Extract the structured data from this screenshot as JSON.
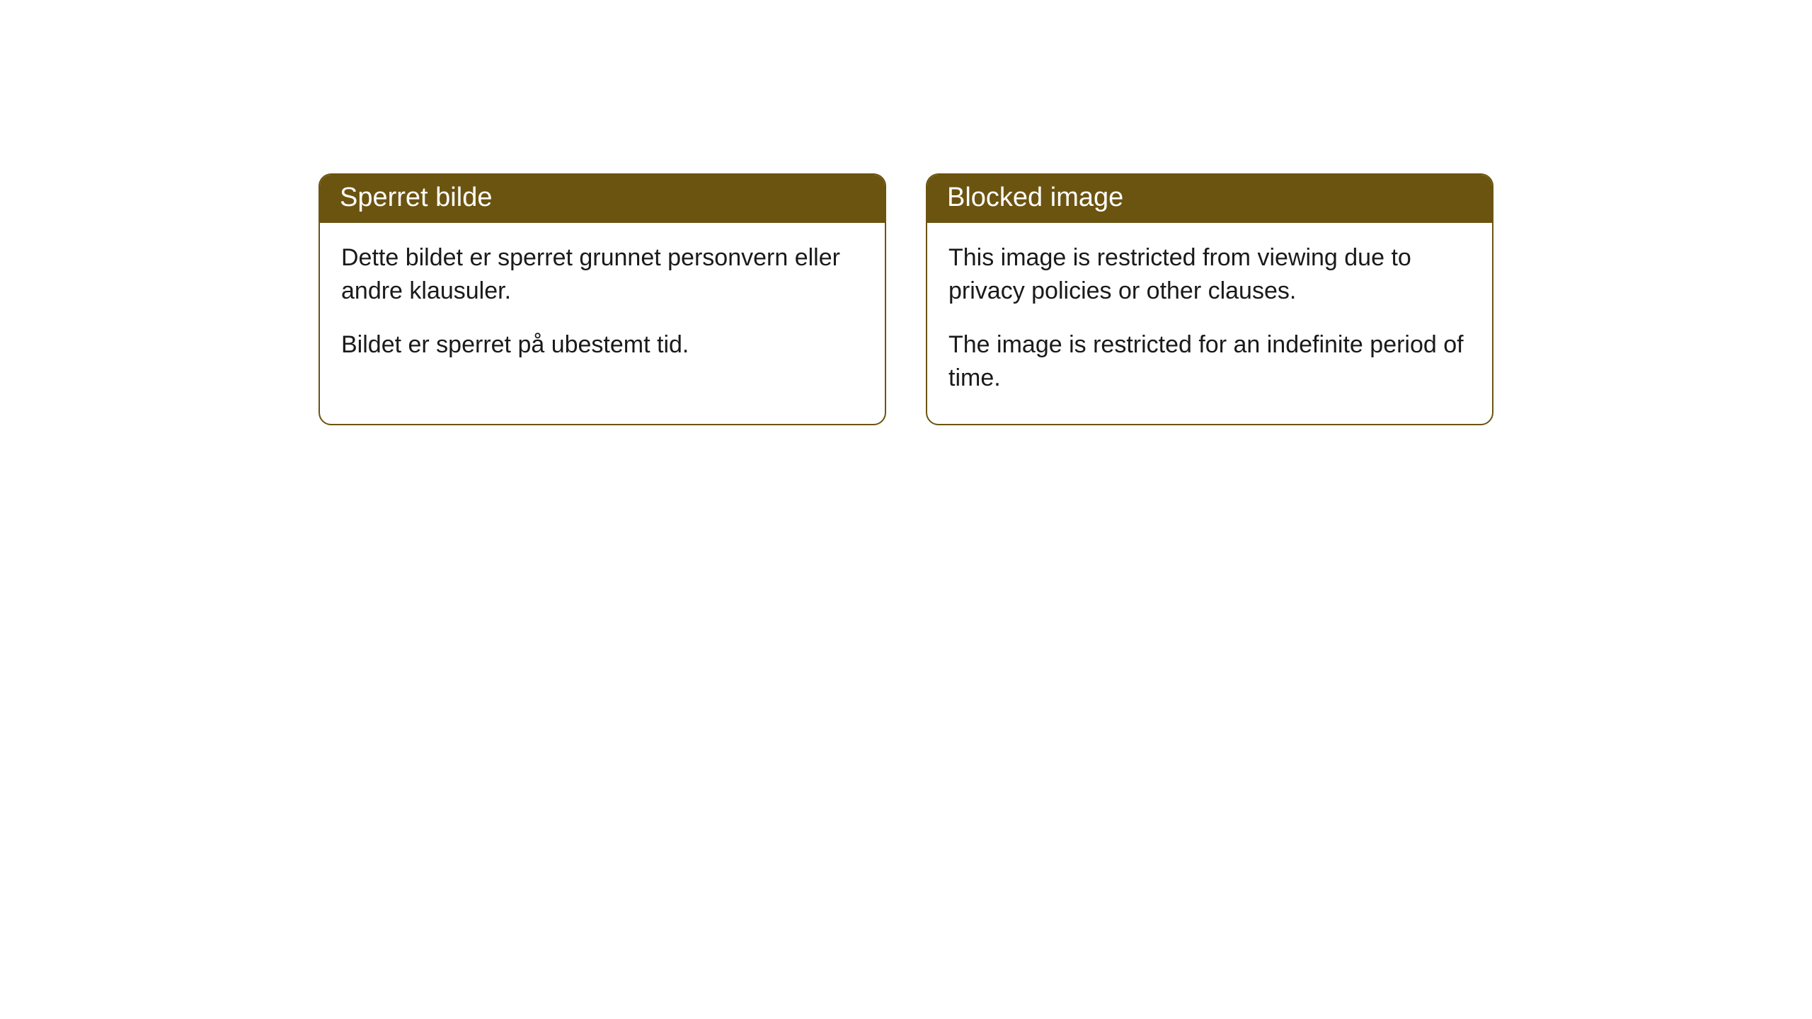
{
  "cards": [
    {
      "title": "Sperret bilde",
      "paragraph1": "Dette bildet er sperret grunnet personvern eller andre klausuler.",
      "paragraph2": "Bildet er sperret på ubestemt tid."
    },
    {
      "title": "Blocked image",
      "paragraph1": "This image is restricted from viewing due to privacy policies or other clauses.",
      "paragraph2": "The image is restricted for an indefinite period of time."
    }
  ],
  "style": {
    "header_background": "#6b5410",
    "header_text_color": "#ffffff",
    "body_text_color": "#1a1a1a",
    "card_border_color": "#6b5410",
    "card_background": "#ffffff",
    "page_background": "#ffffff",
    "border_radius": 18,
    "header_fontsize": 38,
    "body_fontsize": 34
  }
}
